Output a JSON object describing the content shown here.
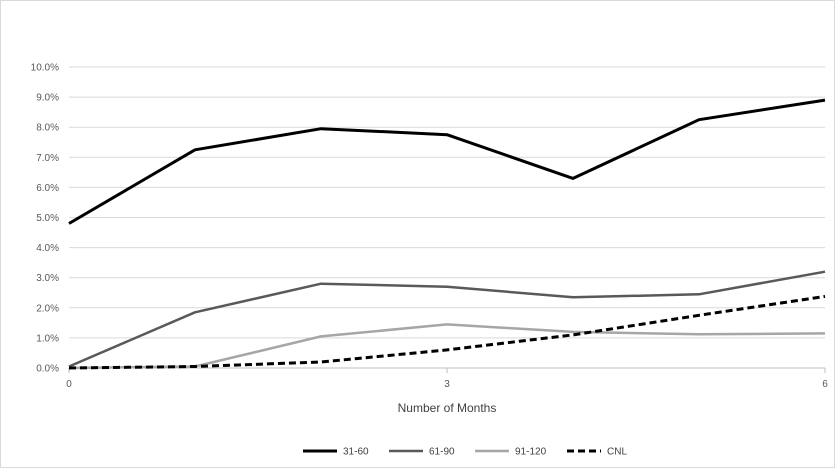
{
  "chart_data": {
    "type": "line",
    "title": "",
    "xlabel": "Number of Months",
    "ylabel": "",
    "x": [
      0,
      1,
      2,
      3,
      4,
      5,
      6
    ],
    "x_tick_labels": [
      "0",
      "3",
      "6"
    ],
    "x_tick_values": [
      0,
      3,
      6
    ],
    "y_tick_labels": [
      "0.0%",
      "1.0%",
      "2.0%",
      "3.0%",
      "4.0%",
      "5.0%",
      "6.0%",
      "7.0%",
      "8.0%",
      "9.0%",
      "10.0%"
    ],
    "ylim": [
      0,
      10
    ],
    "xlim": [
      0,
      6
    ],
    "grid": true,
    "legend_position": "bottom",
    "series": [
      {
        "name": "31-60",
        "values": [
          4.8,
          7.25,
          7.95,
          7.75,
          6.3,
          8.25,
          8.9
        ],
        "color": "#000000",
        "style": "solid",
        "width": 3
      },
      {
        "name": "61-90",
        "values": [
          0.05,
          1.85,
          2.8,
          2.7,
          2.35,
          2.45,
          3.2
        ],
        "color": "#595959",
        "style": "solid",
        "width": 2.5
      },
      {
        "name": "91-120",
        "values": [
          0.0,
          0.05,
          1.05,
          1.45,
          1.2,
          1.12,
          1.15
        ],
        "color": "#a6a6a6",
        "style": "solid",
        "width": 2.5
      },
      {
        "name": "CNL",
        "values": [
          0.0,
          0.05,
          0.2,
          0.6,
          1.1,
          1.75,
          2.38
        ],
        "color": "#000000",
        "style": "dashed",
        "width": 3
      }
    ]
  }
}
